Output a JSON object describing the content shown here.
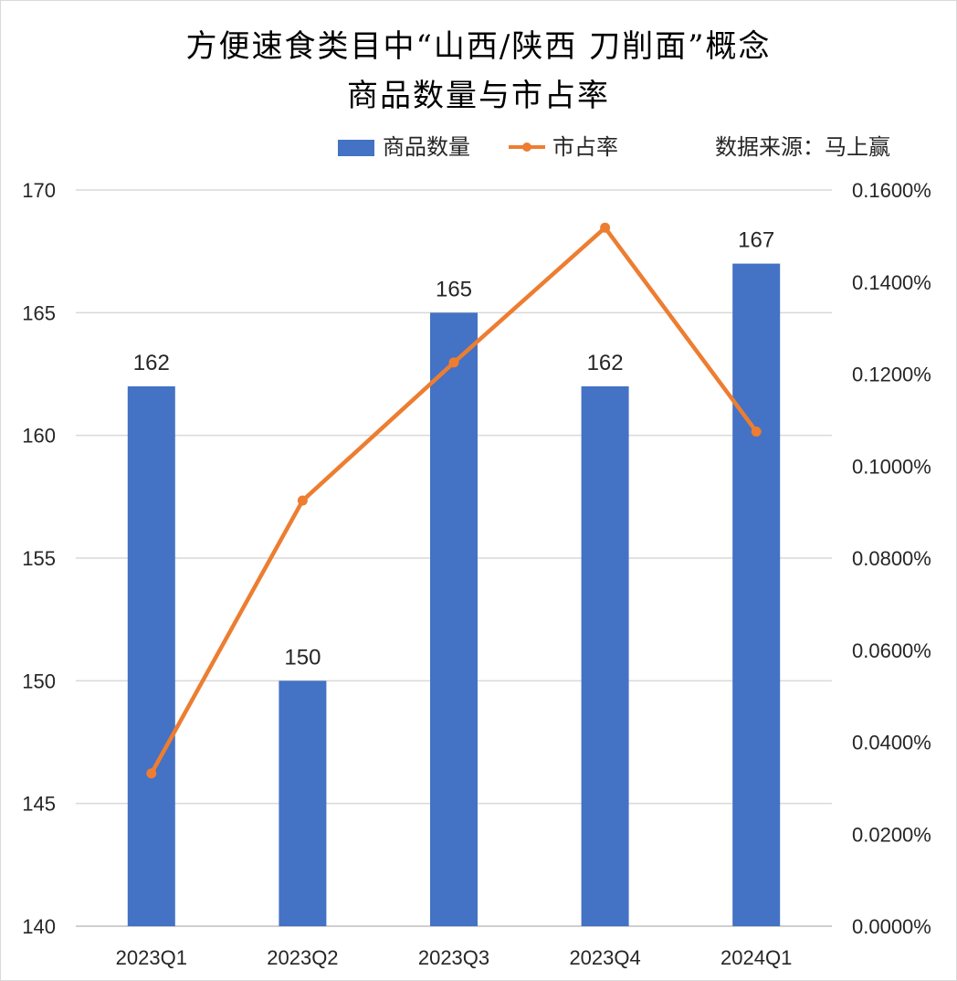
{
  "chart_data": {
    "type": "bar",
    "title_line1": "方便速食类目中“山西/陕西 刀削面”概念",
    "title_line2": "商品数量与市占率",
    "source_note": "数据来源：马上赢",
    "categories": [
      "2023Q1",
      "2023Q2",
      "2023Q3",
      "2023Q4",
      "2024Q1"
    ],
    "series": [
      {
        "name": "商品数量",
        "kind": "bar",
        "axis": "left",
        "color": "#4472c4",
        "values": [
          162,
          150,
          165,
          162,
          167
        ],
        "labels": [
          "162",
          "150",
          "165",
          "162",
          "167"
        ]
      },
      {
        "name": "市占率",
        "kind": "line",
        "axis": "right",
        "color": "#ed7d31",
        "values": [
          0.0332,
          0.0925,
          0.1225,
          0.1518,
          0.1075
        ]
      }
    ],
    "y_left": {
      "range": [
        140,
        170
      ],
      "ticks": [
        170,
        165,
        160,
        155,
        150,
        145,
        140
      ],
      "tick_labels": [
        "170",
        "165",
        "160",
        "155",
        "150",
        "145",
        "140"
      ]
    },
    "y_right": {
      "unit": "percent",
      "range": [
        0,
        0.16
      ],
      "ticks": [
        0.16,
        0.14,
        0.12,
        0.1,
        0.08,
        0.06,
        0.04,
        0.02,
        0
      ],
      "tick_labels": [
        "0.1600%",
        "0.1400%",
        "0.1200%",
        "0.1000%",
        "0.0800%",
        "0.0600%",
        "0.0400%",
        "0.0200%",
        "0.0000%"
      ]
    },
    "grid": true,
    "legend_position": "top"
  }
}
